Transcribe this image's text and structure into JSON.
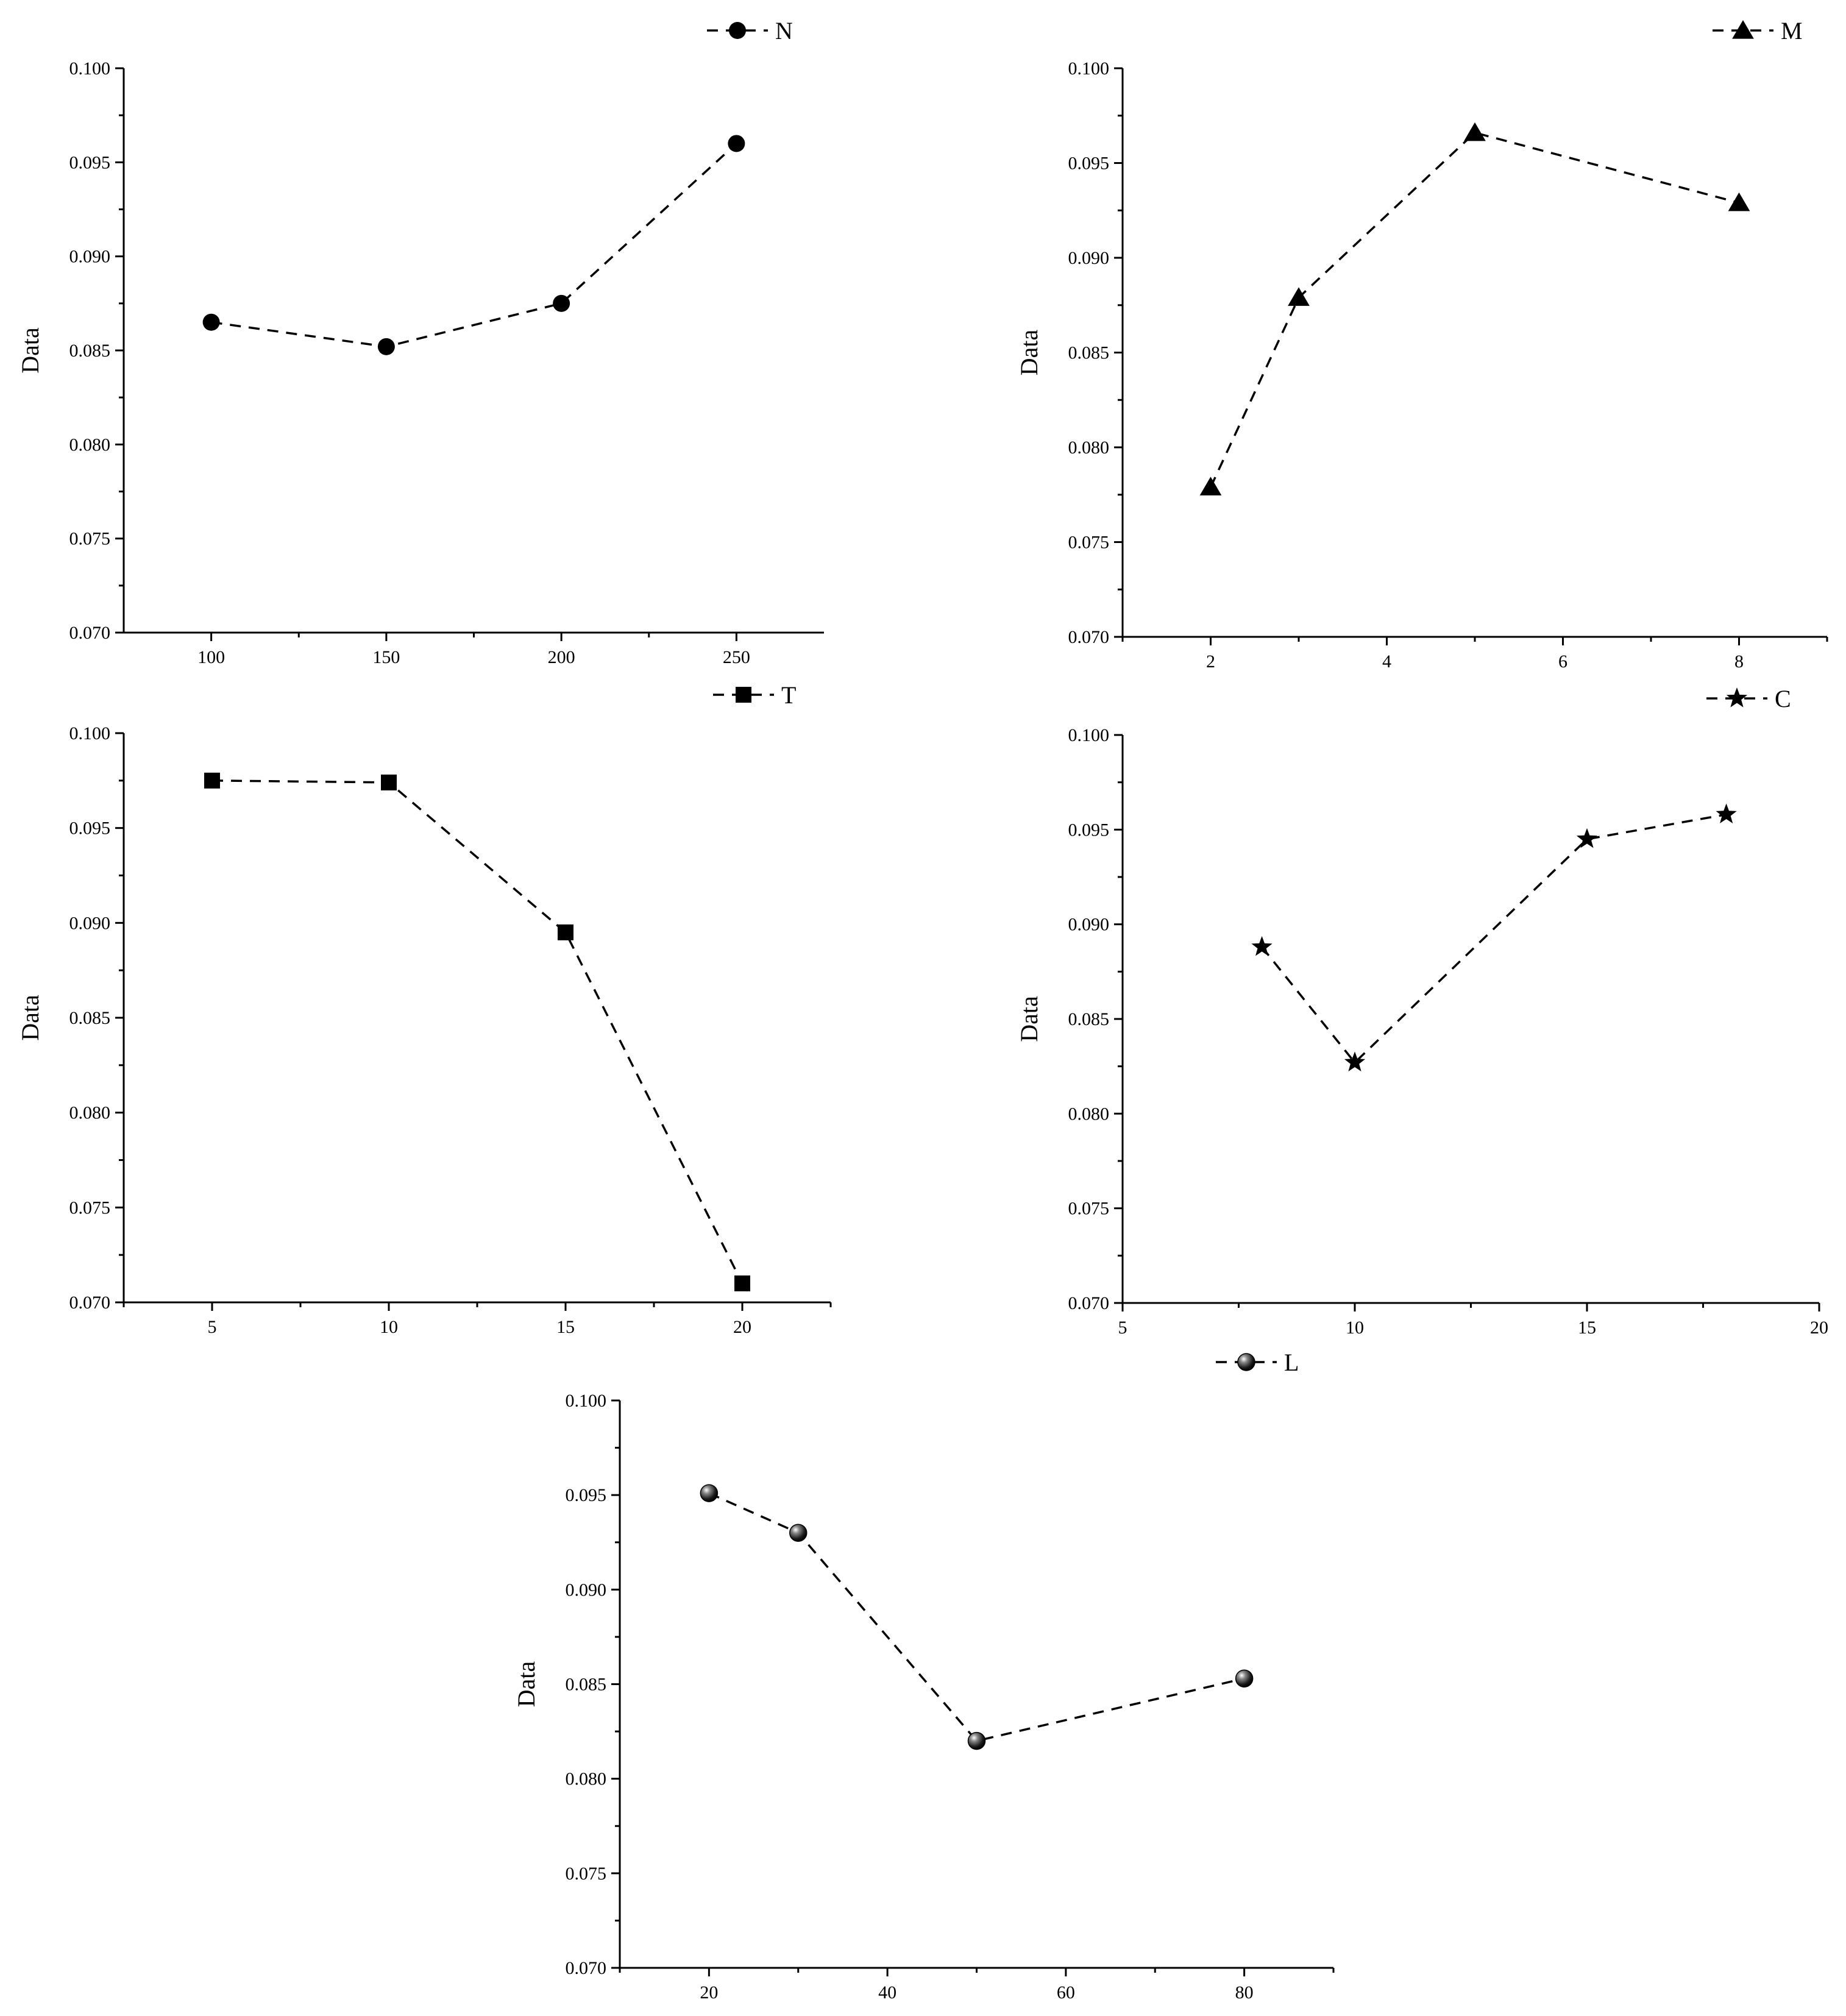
{
  "colors": {
    "ink": "#000000",
    "background": "#ffffff"
  },
  "chart_data": [
    {
      "type": "line",
      "series": [
        {
          "name": "N",
          "marker": "circle-icon",
          "x": [
            100,
            150,
            200,
            250
          ],
          "values": [
            0.0865,
            0.0852,
            0.0875,
            0.096
          ]
        }
      ],
      "xlabel": "",
      "ylabel": "Data",
      "xlim": [
        75,
        275
      ],
      "ylim": [
        0.07,
        0.1
      ],
      "xticks": [
        "100",
        "150",
        "200",
        "250"
      ],
      "xtick_values": [
        100,
        150,
        200,
        250
      ],
      "xminor_values": [
        125,
        175,
        225
      ],
      "yticks": [
        "0.070",
        "0.075",
        "0.080",
        "0.085",
        "0.090",
        "0.095",
        "0.100"
      ],
      "ytick_values": [
        0.07,
        0.075,
        0.08,
        0.085,
        0.09,
        0.095,
        0.1
      ],
      "legend": "top-right",
      "grid": false
    },
    {
      "type": "line",
      "series": [
        {
          "name": "M",
          "marker": "triangle-icon",
          "x": [
            2,
            3,
            5,
            8
          ],
          "values": [
            0.0779,
            0.0879,
            0.0966,
            0.0929
          ]
        }
      ],
      "xlabel": "",
      "ylabel": "Data",
      "xlim": [
        1,
        9
      ],
      "ylim": [
        0.07,
        0.1
      ],
      "xticks": [
        "2",
        "4",
        "6",
        "8"
      ],
      "xtick_values": [
        2,
        4,
        6,
        8
      ],
      "xminor_values": [
        1,
        3,
        5,
        7,
        9
      ],
      "yticks": [
        "0.070",
        "0.075",
        "0.080",
        "0.085",
        "0.090",
        "0.095",
        "0.100"
      ],
      "ytick_values": [
        0.07,
        0.075,
        0.08,
        0.085,
        0.09,
        0.095,
        0.1
      ],
      "legend": "top-right",
      "grid": false
    },
    {
      "type": "line",
      "series": [
        {
          "name": "T",
          "marker": "square-icon",
          "x": [
            5,
            10,
            15,
            20
          ],
          "values": [
            0.0975,
            0.0974,
            0.0895,
            0.071
          ]
        }
      ],
      "xlabel": "",
      "ylabel": "Data",
      "xlim": [
        2.5,
        22.5
      ],
      "ylim": [
        0.07,
        0.1
      ],
      "xticks": [
        "5",
        "10",
        "15",
        "20"
      ],
      "xtick_values": [
        5,
        10,
        15,
        20
      ],
      "xminor_values": [
        2.5,
        7.5,
        12.5,
        17.5,
        22.5
      ],
      "yticks": [
        "0.070",
        "0.075",
        "0.080",
        "0.085",
        "0.090",
        "0.095",
        "0.100"
      ],
      "ytick_values": [
        0.07,
        0.075,
        0.08,
        0.085,
        0.09,
        0.095,
        0.1
      ],
      "legend": "top-right",
      "grid": false
    },
    {
      "type": "line",
      "series": [
        {
          "name": "C",
          "marker": "star-icon",
          "x": [
            8,
            10,
            15,
            18
          ],
          "values": [
            0.0888,
            0.0827,
            0.0945,
            0.0958
          ]
        }
      ],
      "xlabel": "",
      "ylabel": "Data",
      "xlim": [
        5,
        20
      ],
      "ylim": [
        0.07,
        0.1
      ],
      "xticks": [
        "5",
        "10",
        "15",
        "20"
      ],
      "xtick_values": [
        5,
        10,
        15,
        20
      ],
      "xminor_values": [
        7.5,
        12.5,
        17.5
      ],
      "yticks": [
        "0.070",
        "0.075",
        "0.080",
        "0.085",
        "0.090",
        "0.095",
        "0.100"
      ],
      "ytick_values": [
        0.07,
        0.075,
        0.08,
        0.085,
        0.09,
        0.095,
        0.1
      ],
      "legend": "top-right",
      "grid": false
    },
    {
      "type": "line",
      "series": [
        {
          "name": "L",
          "marker": "shaded-sphere-icon",
          "x": [
            20,
            30,
            50,
            80
          ],
          "values": [
            0.0951,
            0.093,
            0.082,
            0.0853
          ]
        }
      ],
      "xlabel": "",
      "ylabel": "Data",
      "xlim": [
        10,
        90
      ],
      "ylim": [
        0.07,
        0.1
      ],
      "xticks": [
        "20",
        "40",
        "60",
        "80"
      ],
      "xtick_values": [
        20,
        40,
        60,
        80
      ],
      "xminor_values": [
        10,
        30,
        50,
        70,
        90
      ],
      "yticks": [
        "0.070",
        "0.075",
        "0.080",
        "0.085",
        "0.090",
        "0.095",
        "0.100"
      ],
      "ytick_values": [
        0.07,
        0.075,
        0.08,
        0.085,
        0.09,
        0.095,
        0.1
      ],
      "legend": "top-right",
      "grid": false
    }
  ]
}
